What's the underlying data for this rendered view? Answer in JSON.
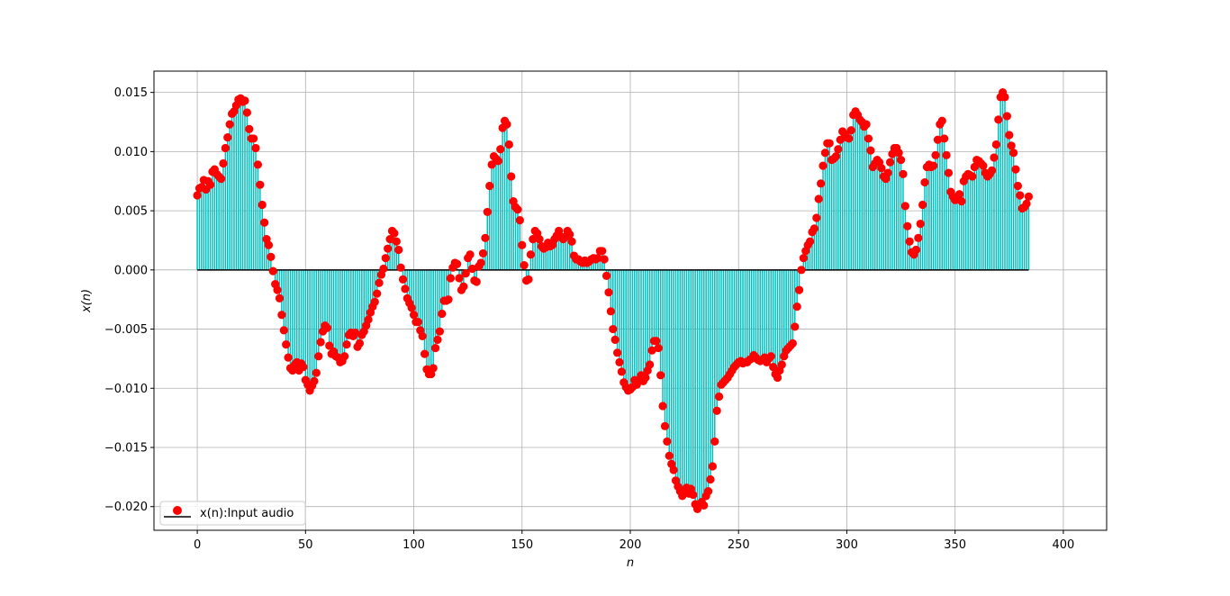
{
  "chart_data": {
    "type": "stem",
    "title": "",
    "xlabel": "n",
    "ylabel": "x(n)",
    "xlim": [
      -20,
      420
    ],
    "ylim": [
      -0.022,
      0.0168
    ],
    "xticks": [
      0,
      50,
      100,
      150,
      200,
      250,
      300,
      350,
      400
    ],
    "xtick_labels": [
      "0",
      "50",
      "100",
      "150",
      "200",
      "250",
      "300",
      "350",
      "400"
    ],
    "yticks": [
      0.015,
      0.01,
      0.005,
      0.0,
      -0.005,
      -0.01,
      -0.015,
      -0.02
    ],
    "ytick_labels": [
      "0.015",
      "0.010",
      "0.005",
      "0.000",
      "−0.005",
      "−0.010",
      "−0.015",
      "−0.020"
    ],
    "grid": true,
    "legend": {
      "placement": "lower-left",
      "entries": [
        "x(n):Input audio"
      ]
    },
    "colors": {
      "stem": "#00bfbf",
      "marker": "#ff0000",
      "baseline": "#000000",
      "grid": "#b0b0b0"
    },
    "series": [
      {
        "name": "x(n):Input audio",
        "x_start": 0,
        "x_step": 1,
        "values": [
          0.0063,
          0.0069,
          0.007,
          0.0076,
          0.0068,
          0.0075,
          0.0072,
          0.0083,
          0.0085,
          0.0081,
          0.0079,
          0.0077,
          0.009,
          0.0103,
          0.0112,
          0.0123,
          0.0132,
          0.0134,
          0.0139,
          0.0144,
          0.0145,
          0.0142,
          0.0143,
          0.0133,
          0.0119,
          0.0111,
          0.0111,
          0.0103,
          0.0089,
          0.0072,
          0.0055,
          0.004,
          0.0026,
          0.0021,
          0.0011,
          -0.0001,
          -0.0012,
          -0.0017,
          -0.0024,
          -0.0038,
          -0.0051,
          -0.0063,
          -0.0074,
          -0.0083,
          -0.0085,
          -0.008,
          -0.0078,
          -0.0085,
          -0.0079,
          -0.0082,
          -0.0093,
          -0.0097,
          -0.0102,
          -0.0098,
          -0.0094,
          -0.0087,
          -0.0073,
          -0.0061,
          -0.0052,
          -0.0047,
          -0.0049,
          -0.0064,
          -0.0071,
          -0.0069,
          -0.0073,
          -0.0074,
          -0.0078,
          -0.0077,
          -0.0073,
          -0.0063,
          -0.0055,
          -0.0053,
          -0.0056,
          -0.0053,
          -0.0065,
          -0.0062,
          -0.0055,
          -0.0052,
          -0.0047,
          -0.0042,
          -0.0036,
          -0.0031,
          -0.0027,
          -0.002,
          -0.0011,
          -0.0004,
          0.0001,
          0.001,
          0.0018,
          0.0026,
          0.0033,
          0.0031,
          0.0024,
          0.0017,
          0.0002,
          -0.0008,
          -0.0016,
          -0.0024,
          -0.0028,
          -0.0032,
          -0.0038,
          -0.0044,
          -0.0044,
          -0.0051,
          -0.0056,
          -0.0071,
          -0.0084,
          -0.0088,
          -0.0088,
          -0.0083,
          -0.0066,
          -0.0059,
          -0.0052,
          -0.0037,
          -0.0026,
          -0.0026,
          -0.0025,
          -0.0007,
          0.0002,
          0.0006,
          0.0005,
          -0.0007,
          -0.0017,
          -0.0014,
          -0.0003,
          0.001,
          0.0013,
          0.0001,
          -0.0009,
          -0.001,
          0.0003,
          0.0006,
          0.0014,
          0.0027,
          0.0049,
          0.0071,
          0.0089,
          0.0096,
          0.0094,
          0.0092,
          0.0102,
          0.012,
          0.0126,
          0.0123,
          0.0106,
          0.0079,
          0.0058,
          0.0053,
          0.0051,
          0.0042,
          0.0021,
          0.0004,
          -0.0009,
          -0.0008,
          0.0013,
          0.0026,
          0.0033,
          0.0031,
          0.0026,
          0.002,
          0.0018,
          0.0019,
          0.0023,
          0.002,
          0.0021,
          0.0026,
          0.0029,
          0.0033,
          0.0028,
          0.0026,
          0.0028,
          0.0033,
          0.003,
          0.0024,
          0.0012,
          0.0009,
          0.0009,
          0.0007,
          0.0006,
          0.0008,
          0.0006,
          0.0007,
          0.0009,
          0.001,
          0.0009,
          0.001,
          0.0016,
          0.0016,
          0.0009,
          -0.0005,
          -0.0019,
          -0.0035,
          -0.005,
          -0.0059,
          -0.007,
          -0.0078,
          -0.0086,
          -0.0095,
          -0.0099,
          -0.0102,
          -0.0101,
          -0.0099,
          -0.0093,
          -0.0097,
          -0.0093,
          -0.0089,
          -0.0094,
          -0.0091,
          -0.0085,
          -0.008,
          -0.0068,
          -0.006,
          -0.006,
          -0.0066,
          -0.0089,
          -0.0115,
          -0.0132,
          -0.0145,
          -0.0157,
          -0.0164,
          -0.0169,
          -0.0178,
          -0.0183,
          -0.0187,
          -0.0191,
          -0.0186,
          -0.0184,
          -0.0189,
          -0.0185,
          -0.019,
          -0.0198,
          -0.0202,
          -0.0199,
          -0.0196,
          -0.0199,
          -0.0191,
          -0.0187,
          -0.0177,
          -0.0166,
          -0.0145,
          -0.0119,
          -0.0107,
          -0.0097,
          -0.0095,
          -0.0093,
          -0.0091,
          -0.0088,
          -0.0085,
          -0.0082,
          -0.008,
          -0.0078,
          -0.0077,
          -0.0079,
          -0.0078,
          -0.0078,
          -0.0076,
          -0.0075,
          -0.0072,
          -0.0074,
          -0.0076,
          -0.0077,
          -0.0076,
          -0.0074,
          -0.0078,
          -0.0075,
          -0.0073,
          -0.0082,
          -0.0088,
          -0.0091,
          -0.0085,
          -0.008,
          -0.0073,
          -0.0068,
          -0.0066,
          -0.0064,
          -0.0062,
          -0.0048,
          -0.0031,
          -0.0017,
          0.0,
          0.001,
          0.0016,
          0.0021,
          0.0024,
          0.0032,
          0.0035,
          0.0044,
          0.006,
          0.0073,
          0.0088,
          0.0099,
          0.0107,
          0.0107,
          0.0093,
          0.0094,
          0.0096,
          0.0102,
          0.011,
          0.0117,
          0.0115,
          0.0112,
          0.0111,
          0.0118,
          0.0131,
          0.0134,
          0.0131,
          0.0127,
          0.0125,
          0.0121,
          0.0123,
          0.0111,
          0.0101,
          0.0087,
          0.009,
          0.0093,
          0.0091,
          0.0086,
          0.0079,
          0.0077,
          0.0082,
          0.0091,
          0.0098,
          0.0103,
          0.0103,
          0.0099,
          0.0093,
          0.0081,
          0.0054,
          0.0037,
          0.0024,
          0.0015,
          0.0013,
          0.0017,
          0.0027,
          0.0039,
          0.0055,
          0.0074,
          0.0087,
          0.0089,
          0.0087,
          0.0088,
          0.0097,
          0.011,
          0.0123,
          0.0126,
          0.0111,
          0.0097,
          0.0082,
          0.0066,
          0.0062,
          0.0059,
          0.006,
          0.0064,
          0.0058,
          0.0075,
          0.0079,
          0.0081,
          0.008,
          0.0079,
          0.0087,
          0.0093,
          0.0092,
          0.009,
          0.0088,
          0.0082,
          0.0079,
          0.0081,
          0.0084,
          0.0095,
          0.0106,
          0.0127,
          0.0146,
          0.015,
          0.0146,
          0.013,
          0.0114,
          0.0105,
          0.0099,
          0.0085,
          0.0071,
          0.0063,
          0.0052,
          0.0053,
          0.0056,
          0.0062
        ]
      }
    ]
  }
}
